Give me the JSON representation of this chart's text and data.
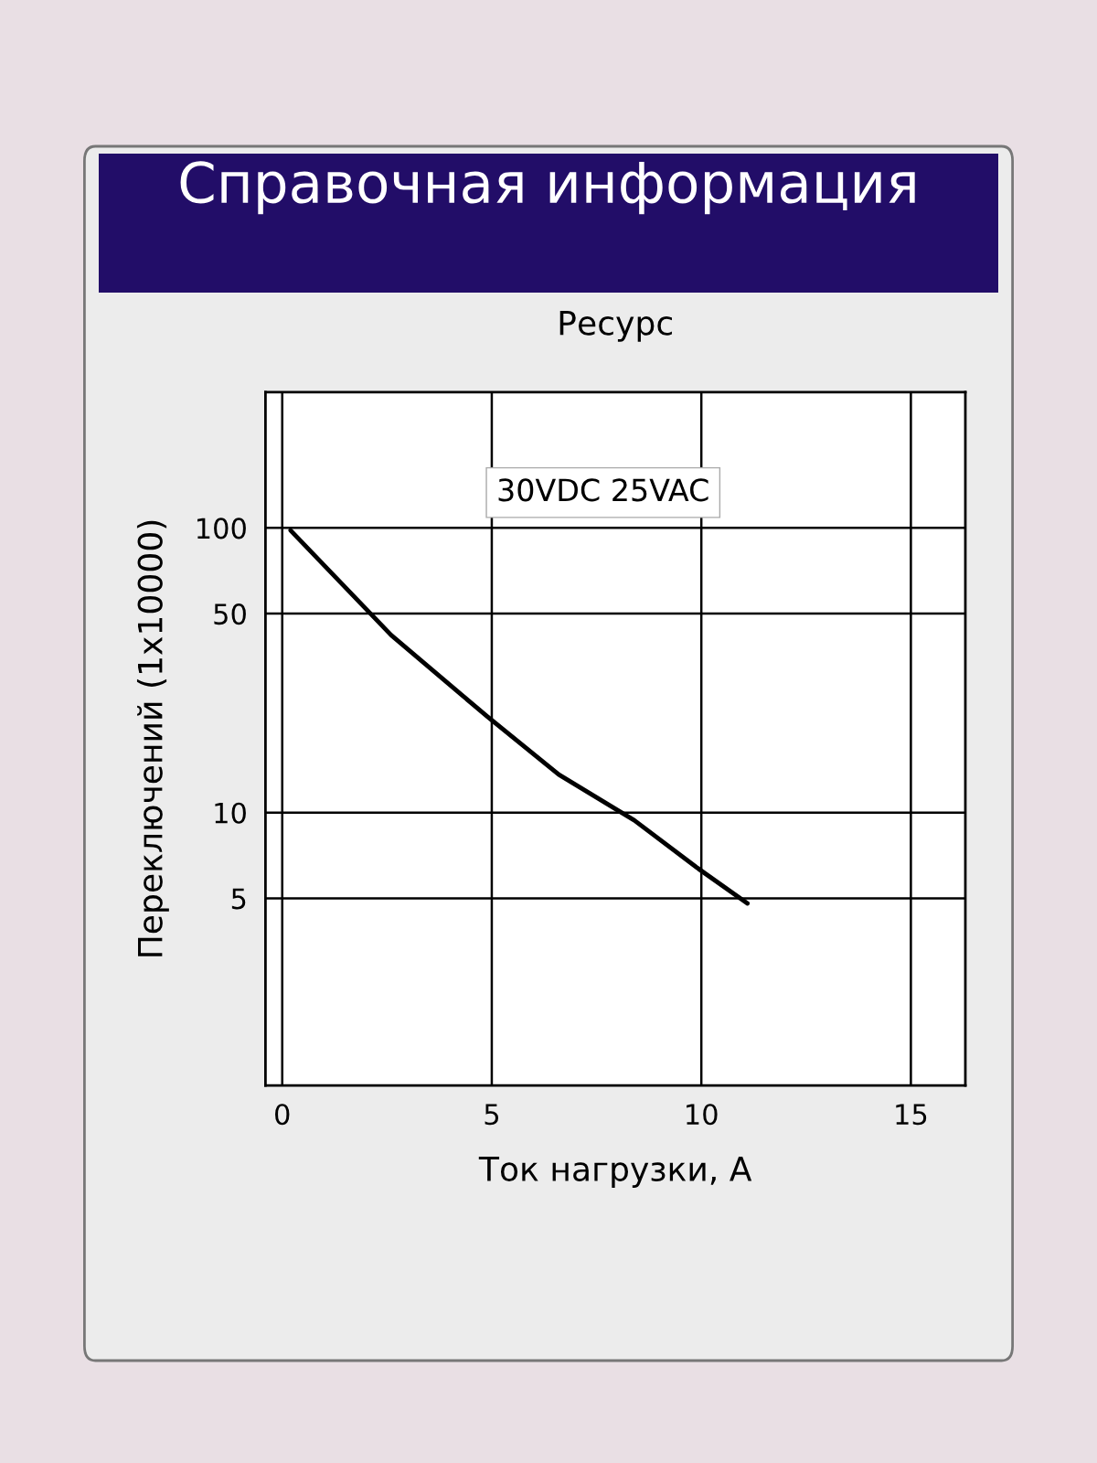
{
  "chart_data": {
    "type": "line",
    "title": "Справочная информация",
    "subtitle": "Ресурс",
    "xlabel": "Ток нагрузки, А",
    "ylabel": "Переключений (1x10000)",
    "x": [
      0.2,
      2.6,
      4.9,
      6.6,
      8.4,
      9.9,
      11.1
    ],
    "series": [
      {
        "color": "#000000",
        "values": [
          98,
          42,
          21.7,
          13.6,
          9.4,
          6.4,
          4.8
        ]
      }
    ],
    "annotations": [
      "30VDC 25VAC"
    ],
    "xlim": [
      -0.4,
      16.3
    ],
    "xticks": [
      0,
      5,
      10,
      15
    ],
    "ylim": [
      1.1,
      300
    ],
    "yticks": [
      5,
      10,
      50,
      100
    ],
    "log": true,
    "grid": true,
    "marker": "none",
    "line_style": "solid"
  }
}
